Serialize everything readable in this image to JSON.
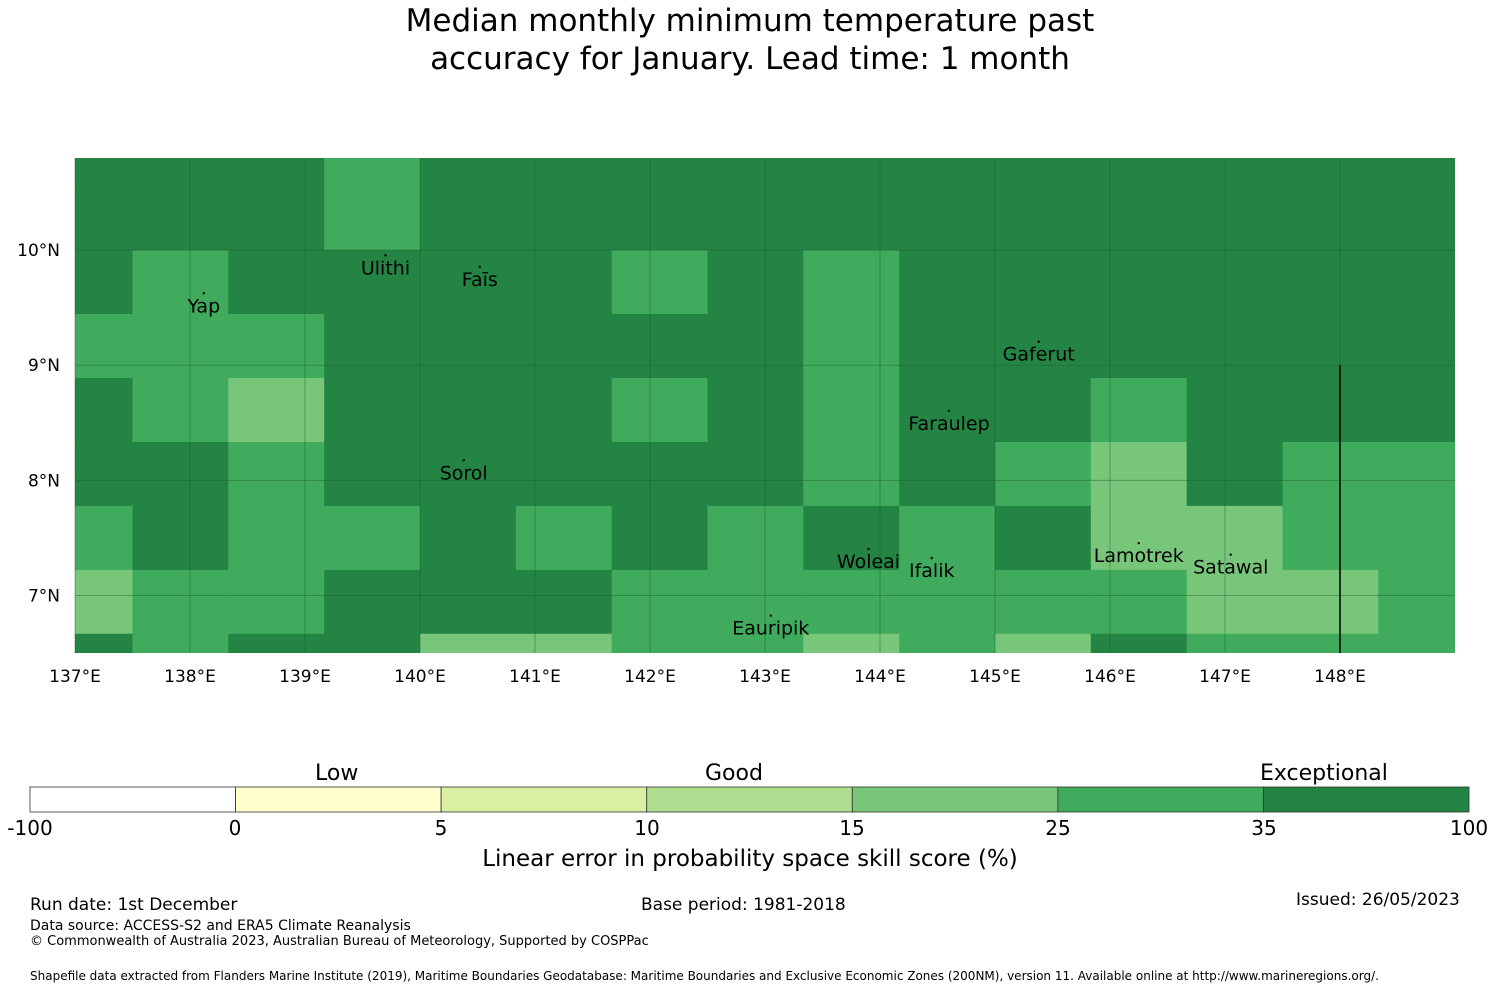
{
  "title": {
    "line1": "Median monthly minimum temperature past",
    "line2": "accuracy for January. Lead time: 1 month"
  },
  "colors": {
    "c35": "#238443",
    "c25": "#41ab5d",
    "c15": "#78c679",
    "c10": "#addd8e",
    "c5": "#d9f0a3",
    "c0": "#ffffcc",
    "cneg": "#ffffff"
  },
  "chart_data": {
    "type": "heatmap",
    "lon_range": [
      137,
      149
    ],
    "lat_range": [
      6.5,
      10.8
    ],
    "x_ticks": [
      {
        "value": 137,
        "label": "137°E"
      },
      {
        "value": 138,
        "label": "138°E"
      },
      {
        "value": 139,
        "label": "139°E"
      },
      {
        "value": 140,
        "label": "140°E"
      },
      {
        "value": 141,
        "label": "141°E"
      },
      {
        "value": 142,
        "label": "142°E"
      },
      {
        "value": 143,
        "label": "143°E"
      },
      {
        "value": 144,
        "label": "144°E"
      },
      {
        "value": 145,
        "label": "145°E"
      },
      {
        "value": 146,
        "label": "146°E"
      },
      {
        "value": 147,
        "label": "147°E"
      },
      {
        "value": 148,
        "label": "148°E"
      }
    ],
    "y_ticks": [
      {
        "value": 10,
        "label": "10°N"
      },
      {
        "value": 9,
        "label": "9°N"
      },
      {
        "value": 8,
        "label": "8°N"
      },
      {
        "value": 7,
        "label": "7°N"
      }
    ],
    "grid": true,
    "grid_lon_edges": [
      136.5,
      137.5,
      138.333,
      139.167,
      140,
      140.833,
      141.667,
      142.5,
      143.333,
      144.167,
      145,
      145.833,
      146.667,
      147.5,
      148.333,
      149.167
    ],
    "grid_lat_edges": [
      10.8,
      10.555,
      10.0,
      9.445,
      8.889,
      8.333,
      7.778,
      7.222,
      6.667,
      6.5
    ],
    "grid_note": "rows from north to south; values are colour class index (0=<0, 1=0-5, 2=5-10, 3=10-15, 4=15-25, 5=25-35, 6=35-100)",
    "cells": [
      [
        6,
        6,
        6,
        5,
        6,
        6,
        6,
        6,
        6,
        6,
        6,
        6,
        6,
        6,
        6
      ],
      [
        6,
        6,
        6,
        5,
        6,
        6,
        6,
        6,
        6,
        6,
        6,
        6,
        6,
        6,
        6
      ],
      [
        6,
        5,
        6,
        6,
        6,
        6,
        5,
        6,
        5,
        6,
        6,
        6,
        6,
        6,
        6
      ],
      [
        5,
        5,
        5,
        6,
        6,
        6,
        6,
        6,
        5,
        6,
        6,
        6,
        6,
        6,
        6
      ],
      [
        6,
        5,
        4,
        6,
        6,
        6,
        5,
        6,
        5,
        6,
        6,
        5,
        6,
        6,
        6
      ],
      [
        6,
        6,
        5,
        6,
        6,
        6,
        6,
        6,
        5,
        6,
        5,
        4,
        6,
        5,
        5
      ],
      [
        5,
        6,
        5,
        5,
        6,
        5,
        6,
        5,
        6,
        5,
        6,
        4,
        4,
        5,
        5
      ],
      [
        4,
        5,
        5,
        6,
        6,
        6,
        5,
        5,
        5,
        5,
        5,
        5,
        4,
        4,
        5
      ],
      [
        6,
        5,
        6,
        6,
        4,
        4,
        5,
        5,
        4,
        5,
        4,
        6,
        5,
        5,
        5
      ]
    ],
    "places": [
      {
        "name": "Ulithi",
        "lon": 139.7,
        "lat": 9.85
      },
      {
        "name": "Faīs",
        "lon": 140.52,
        "lat": 9.75
      },
      {
        "name": "Yap",
        "lon": 138.12,
        "lat": 9.52
      },
      {
        "name": "Gaferut",
        "lon": 145.38,
        "lat": 9.1
      },
      {
        "name": "Faraulep",
        "lon": 144.6,
        "lat": 8.5
      },
      {
        "name": "Sorol",
        "lon": 140.38,
        "lat": 8.07
      },
      {
        "name": "Woleai",
        "lon": 143.9,
        "lat": 7.3
      },
      {
        "name": "Ifalik",
        "lon": 144.45,
        "lat": 7.22
      },
      {
        "name": "Lamotrek",
        "lon": 146.25,
        "lat": 7.35
      },
      {
        "name": "Satawal",
        "lon": 147.05,
        "lat": 7.25
      },
      {
        "name": "Eauripik",
        "lon": 143.05,
        "lat": 6.72
      }
    ],
    "boundary_line": {
      "lon": 148,
      "lat_from": 9.0,
      "lat_to": 6.5
    }
  },
  "colorbar": {
    "class_labels": [
      "Low",
      "Good",
      "Exceptional"
    ],
    "ticks": [
      "-100",
      "0",
      "5",
      "10",
      "15",
      "25",
      "35",
      "100"
    ],
    "colors": [
      "#ffffff",
      "#ffffcc",
      "#d9f0a3",
      "#addd8e",
      "#78c679",
      "#41ab5d",
      "#238443"
    ],
    "title": "Linear error in probability space skill score (%)"
  },
  "footer": {
    "run_date": "Run date: 1st December",
    "base_period": "Base period: 1981-2018",
    "issued": "Issued: 26/05/2023",
    "data_source": "Data source: ACCESS-S2 and ERA5 Climate Reanalysis",
    "copyright": "© Commonwealth of Australia 2023, Australian Bureau of Meteorology, Supported by COSPPac",
    "shapefile": "Shapefile data extracted from Flanders Marine Institute (2019), Maritime Boundaries Geodatabase: Maritime Boundaries and Exclusive Economic Zones (200NM), version 11. Available online at http://www.marineregions.org/."
  }
}
